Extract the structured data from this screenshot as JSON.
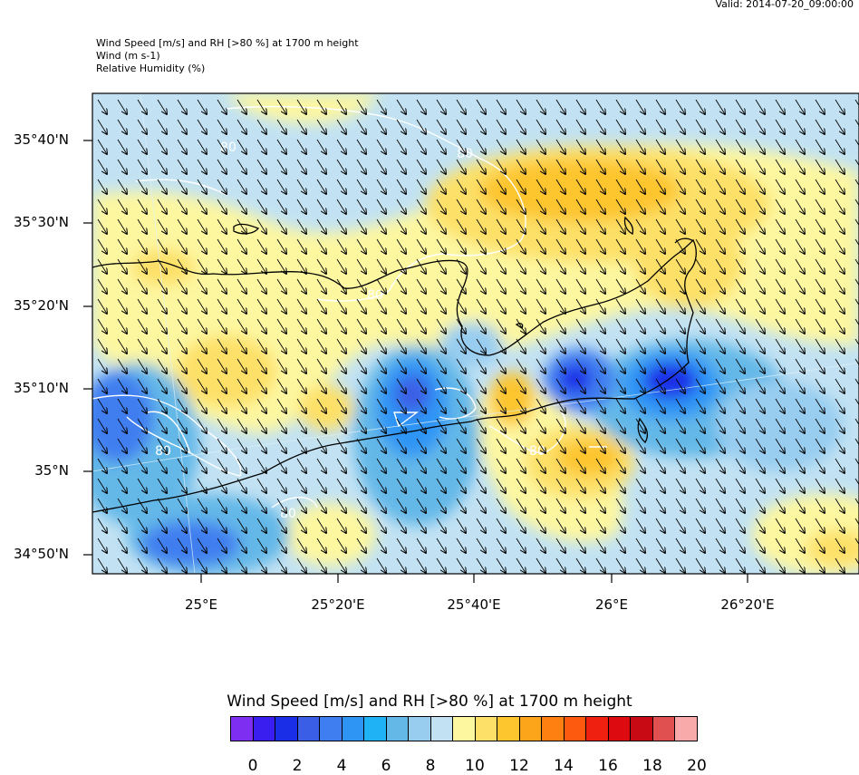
{
  "header": {
    "valid": "Valid: 2014-07-20_09:00:00",
    "line1": "Wind Speed [m/s] and RH [>80 %] at 1700 m height",
    "line2": "Wind   (m s-1)",
    "line3": "Relative Humidity   (%)"
  },
  "axes": {
    "y_labels": [
      "35°40'N",
      "35°30'N",
      "35°20'N",
      "35°10'N",
      "35°N",
      "34°50'N"
    ],
    "x_labels": [
      "25°E",
      "25°20'E",
      "25°40'E",
      "26°E",
      "26°20'E"
    ]
  },
  "contour_label": "80",
  "colorbar": {
    "title": "Wind Speed [m/s] and RH [>80 %] at 1700 m height",
    "colors": [
      "#7e2ef0",
      "#3a1ef0",
      "#1a2ee8",
      "#3a5ee6",
      "#3f7ef0",
      "#2f95f5",
      "#1fb2f5",
      "#63b8e8",
      "#98cdf0",
      "#c2e2f3",
      "#fdf7a0",
      "#fde068",
      "#fdc52e",
      "#fda51a",
      "#fd8010",
      "#fd5a10",
      "#f02010",
      "#dd0a10",
      "#c80a15",
      "#e05050",
      "#f8aaaa"
    ],
    "labels": [
      "0",
      "2",
      "4",
      "6",
      "8",
      "10",
      "12",
      "14",
      "16",
      "18",
      "20"
    ]
  }
}
